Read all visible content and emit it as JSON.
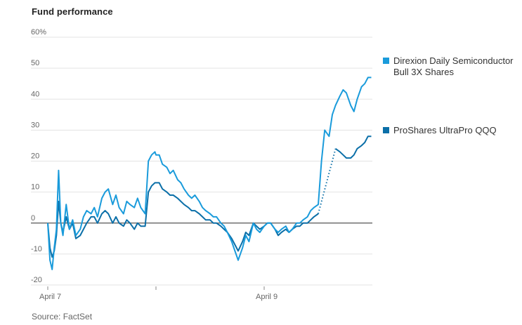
{
  "chart_data": {
    "type": "line",
    "title": "Fund performance",
    "source": "Source: FactSet",
    "xlabel": "",
    "ylabel": "",
    "ylim": [
      -20,
      60
    ],
    "y_ticks": [
      {
        "value": 60,
        "label": "60%"
      },
      {
        "value": 50,
        "label": "50"
      },
      {
        "value": 40,
        "label": "40"
      },
      {
        "value": 30,
        "label": "30"
      },
      {
        "value": 20,
        "label": "20"
      },
      {
        "value": 10,
        "label": "10"
      },
      {
        "value": 0,
        "label": "0"
      },
      {
        "value": -10,
        "label": "-10"
      },
      {
        "value": -20,
        "label": "-20"
      }
    ],
    "x_ticks": [
      {
        "value": 0,
        "label": "April 7"
      },
      {
        "value": 1,
        "label": ""
      },
      {
        "value": 2,
        "label": "April 9"
      }
    ],
    "grid": true,
    "legend_position": "right",
    "colors": {
      "soxl": "#1a9bdb",
      "tqqq": "#0b6fa8",
      "zero_line": "#555555",
      "grid": "#e3e3e3"
    },
    "x": [
      0,
      0.02,
      0.04,
      0.06,
      0.08,
      0.1,
      0.12,
      0.14,
      0.17,
      0.2,
      0.23,
      0.26,
      0.3,
      0.33,
      0.36,
      0.4,
      0.43,
      0.46,
      0.5,
      0.53,
      0.56,
      0.6,
      0.63,
      0.66,
      0.7,
      0.73,
      0.76,
      0.8,
      0.83,
      0.86,
      0.9,
      0.93,
      0.96,
      0.99,
      1.0,
      1.03,
      1.06,
      1.1,
      1.13,
      1.16,
      1.2,
      1.23,
      1.26,
      1.3,
      1.33,
      1.36,
      1.4,
      1.43,
      1.46,
      1.5,
      1.53,
      1.56,
      1.6,
      1.63,
      1.66,
      1.7,
      1.73,
      1.76,
      1.8,
      1.83,
      1.86,
      1.9,
      1.93,
      1.96,
      2.0,
      2.03,
      2.06,
      2.1,
      2.13,
      2.16,
      2.2,
      2.23,
      2.26,
      2.3,
      2.33,
      2.36,
      2.4,
      2.43,
      2.46,
      2.5,
      2.53,
      2.56,
      2.6,
      2.63,
      2.66,
      2.7,
      2.73,
      2.76,
      2.8,
      2.83,
      2.86,
      2.9,
      2.93,
      2.96,
      2.99
    ],
    "series": [
      {
        "name": "Direxion Daily Semiconductor Bull 3X Shares",
        "key": "soxl",
        "values": [
          0,
          -12,
          -15,
          -8,
          -2,
          17,
          0,
          -4,
          6,
          -2,
          1,
          -4,
          -2,
          2,
          4,
          3,
          5,
          2,
          8,
          10,
          11,
          6,
          9,
          5,
          3,
          7,
          6,
          5,
          8,
          5,
          3,
          20,
          22,
          23,
          22,
          22,
          19,
          18,
          16,
          17,
          14,
          13,
          11,
          9,
          8,
          9,
          7,
          5,
          4,
          3,
          2,
          2,
          0,
          -1,
          -3,
          -6,
          -9,
          -12,
          -8,
          -4,
          -6,
          0,
          -2,
          -3,
          -1,
          0,
          0,
          -2,
          -3,
          -2,
          -1,
          -3,
          -2,
          0,
          0,
          1,
          2,
          4,
          5,
          6,
          20,
          30,
          28,
          35,
          38,
          41,
          43,
          42,
          38,
          36,
          40,
          44,
          45,
          47,
          47
        ]
      },
      {
        "name": "ProShares UltraPro QQQ",
        "key": "tqqq",
        "values": [
          0,
          -8,
          -11,
          -9,
          -4,
          7,
          0,
          -3,
          2,
          -2,
          0,
          -5,
          -4,
          -2,
          0,
          2,
          2,
          0,
          3,
          4,
          3,
          0,
          2,
          0,
          -1,
          1,
          0,
          -2,
          0,
          -1,
          -1,
          10,
          12,
          13,
          13,
          13,
          11,
          10,
          9,
          9,
          8,
          7,
          6,
          5,
          4,
          4,
          3,
          2,
          1,
          1,
          0,
          0,
          -1,
          -2,
          -3,
          -5,
          -7,
          -9,
          -6,
          -3,
          -4,
          0,
          -1,
          -2,
          -1,
          0,
          0,
          -2,
          -4,
          -3,
          -2,
          -3,
          -2,
          -1,
          -1,
          0,
          0,
          1,
          2,
          3,
          5,
          11,
          16,
          21,
          24,
          23,
          22,
          21,
          21,
          22,
          24,
          25,
          26,
          28,
          28
        ]
      }
    ]
  }
}
